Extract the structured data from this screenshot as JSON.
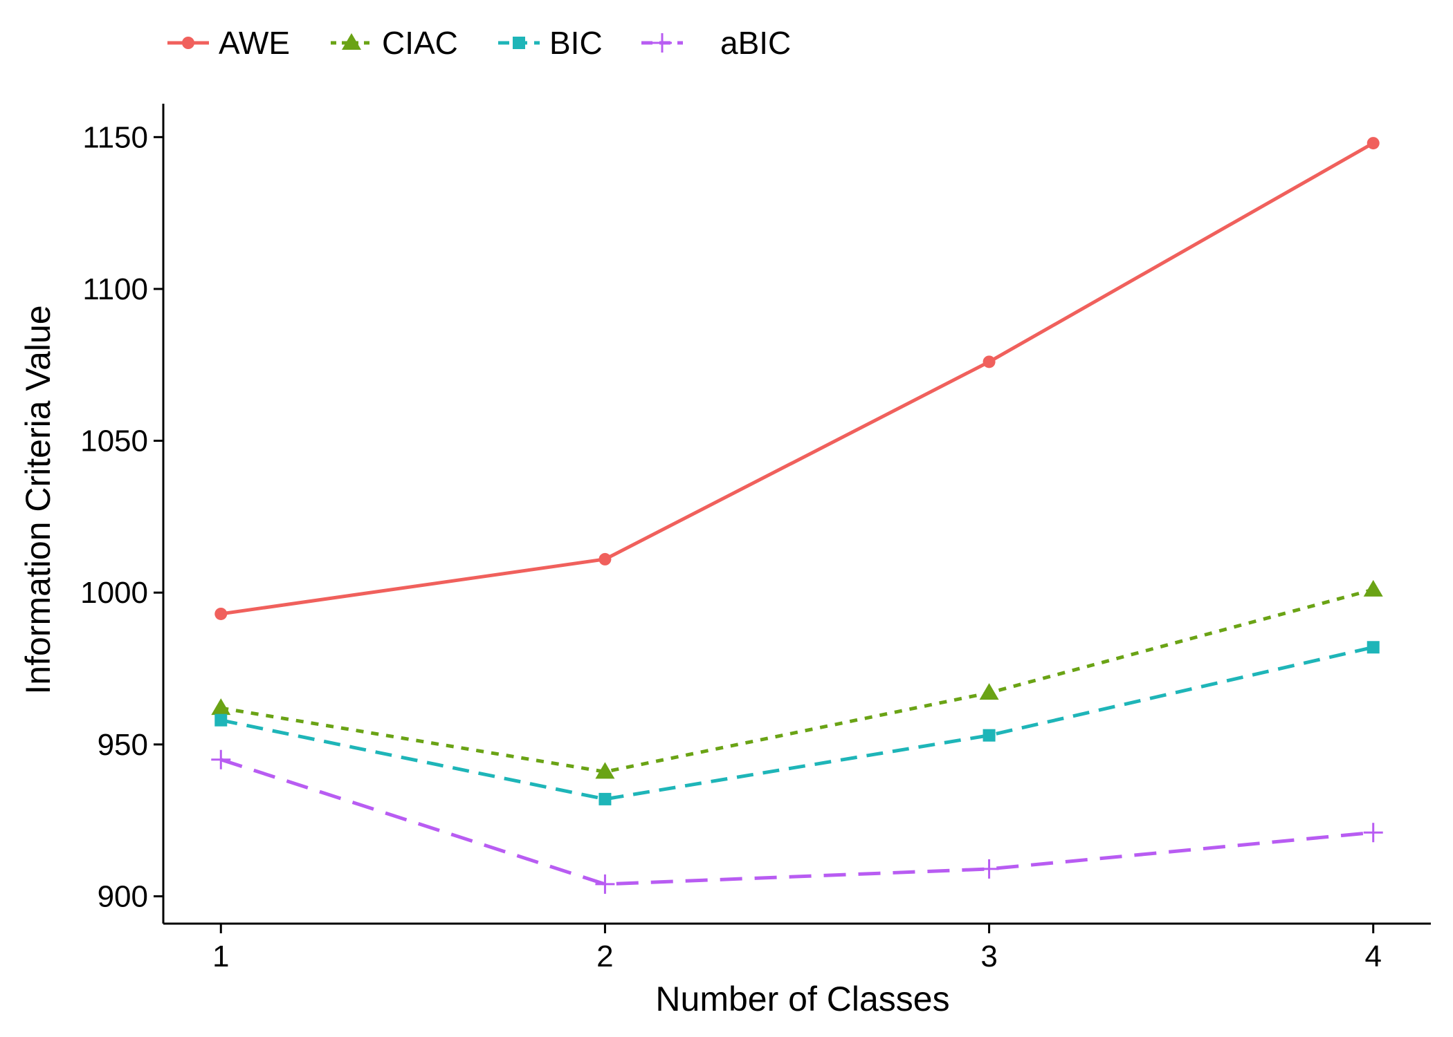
{
  "chart_data": {
    "type": "line",
    "title": "",
    "xlabel": "Number of Classes",
    "ylabel": "Information Criteria Value",
    "x": [
      1,
      2,
      3,
      4
    ],
    "xlim": [
      0.85,
      4.15
    ],
    "ylim": [
      891,
      1161
    ],
    "yticks": [
      900,
      950,
      1000,
      1050,
      1100,
      1150
    ],
    "grid": false,
    "legend_position": "top-left",
    "series": [
      {
        "name": "AWE",
        "values": [
          993,
          1011,
          1076,
          1148
        ],
        "color": "#F0605C",
        "dash": "solid",
        "marker": "circle"
      },
      {
        "name": "CIAC",
        "values": [
          962,
          941,
          967,
          1001
        ],
        "color": "#6AA315",
        "dash": "dotted",
        "marker": "triangle"
      },
      {
        "name": "BIC",
        "values": [
          958,
          932,
          953,
          982
        ],
        "color": "#1EB5B8",
        "dash": "dashed",
        "marker": "square"
      },
      {
        "name": "aBIC",
        "values": [
          945,
          904,
          909,
          921
        ],
        "color": "#B85CF2",
        "dash": "longdash",
        "marker": "plus"
      }
    ]
  }
}
